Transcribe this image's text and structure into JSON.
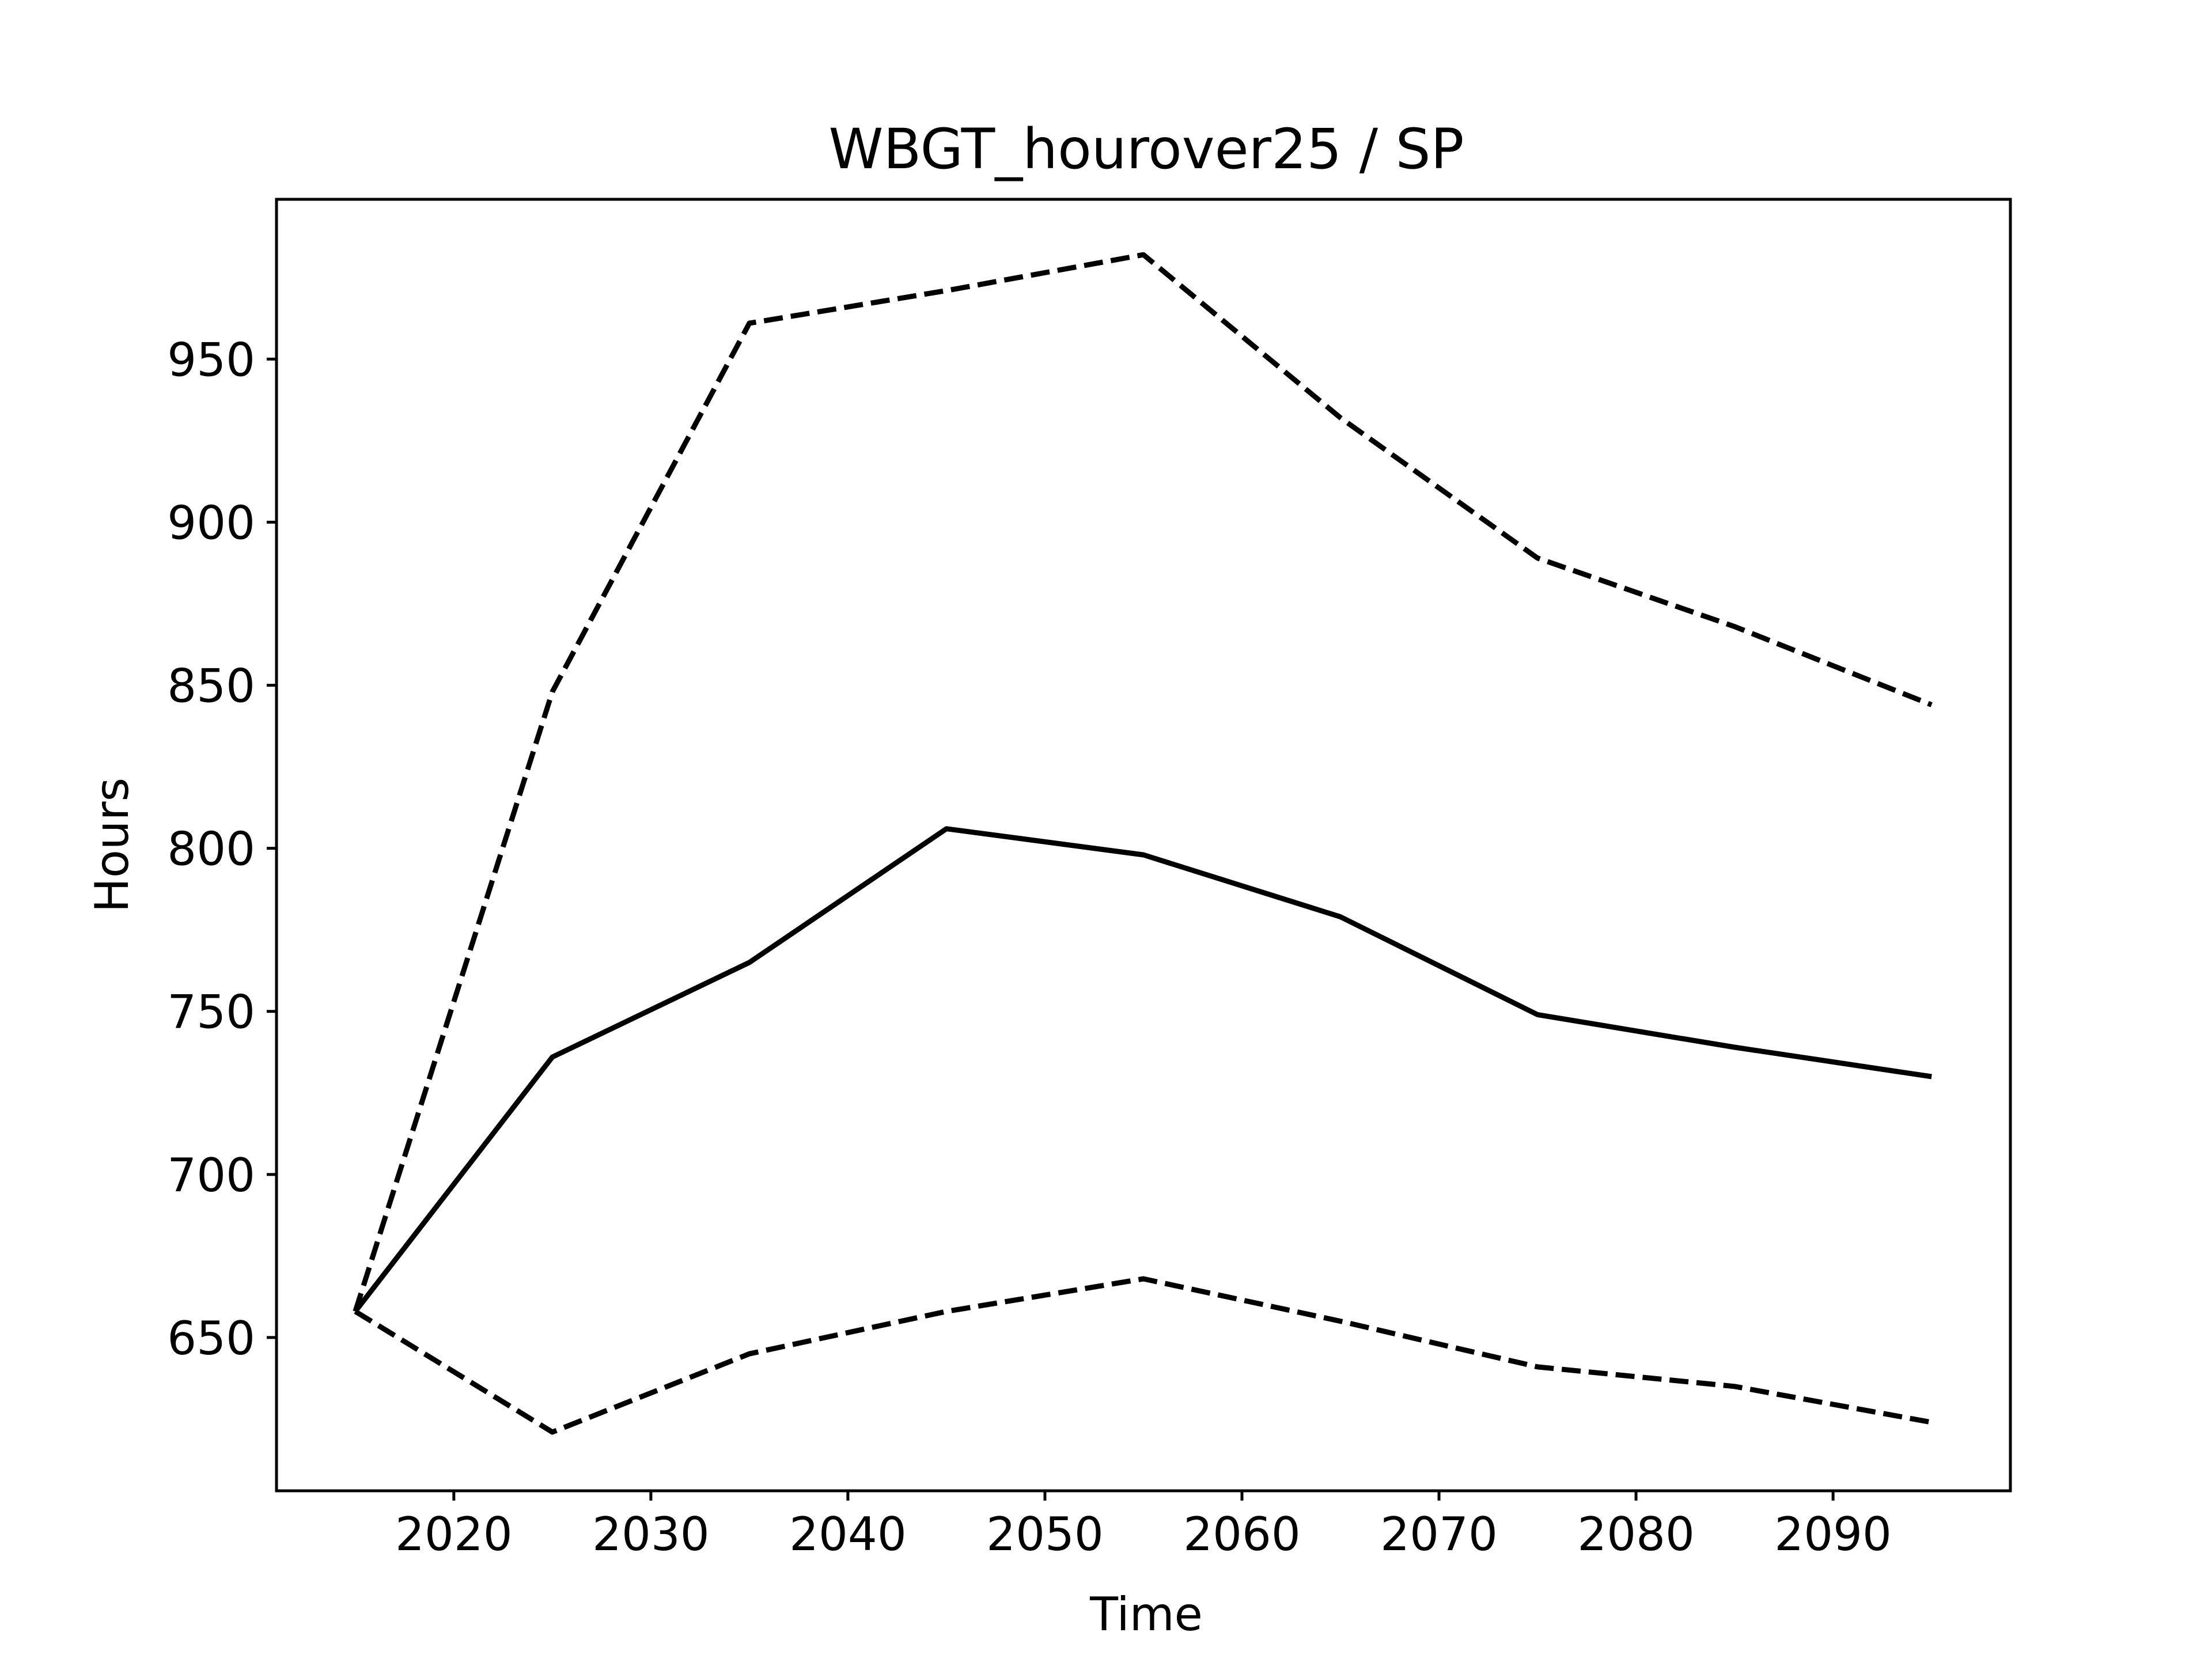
{
  "chart_data": {
    "type": "line",
    "title": "WBGT_hourover25 / SP",
    "xlabel": "Time",
    "ylabel": "Hours",
    "xlim": [
      2011,
      2099
    ],
    "ylim": [
      603,
      999
    ],
    "xticks": [
      2020,
      2030,
      2040,
      2050,
      2060,
      2070,
      2080,
      2090
    ],
    "yticks": [
      650,
      700,
      750,
      800,
      850,
      900,
      950
    ],
    "x": [
      2015,
      2025,
      2035,
      2045,
      2055,
      2065,
      2075,
      2085,
      2095
    ],
    "grid": false,
    "series": [
      {
        "style": "solid",
        "color": "#000000",
        "values": [
          658,
          736,
          765,
          806,
          798,
          779,
          749,
          739,
          730
        ]
      },
      {
        "style": "dashed",
        "color": "#000000",
        "values": [
          658,
          848,
          961,
          971,
          982,
          932,
          889,
          868,
          844
        ]
      },
      {
        "style": "dashed",
        "color": "#000000",
        "values": [
          658,
          621,
          645,
          658,
          668,
          655,
          641,
          635,
          624
        ]
      }
    ]
  }
}
